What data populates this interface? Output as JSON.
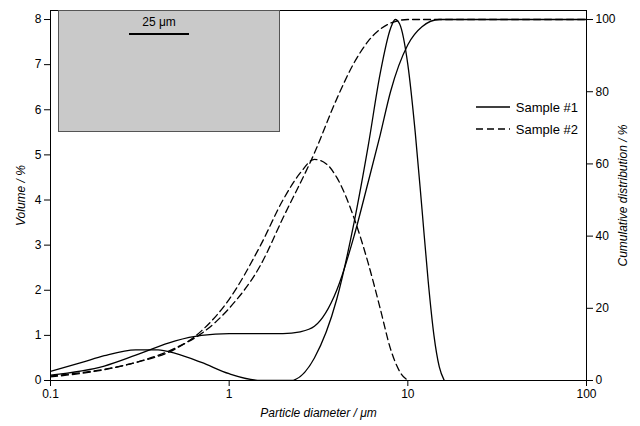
{
  "chart_data": {
    "type": "line",
    "x_label": "Particle diameter / μm",
    "y_label": "Volume / %",
    "y2_label": "Cumulative distribution / %",
    "log": "x",
    "legend": "upper right",
    "annotations": [
      "25 μm"
    ],
    "xlim": [
      0.1,
      100
    ],
    "xticks": [
      0.1,
      1,
      10,
      100
    ],
    "ylim": [
      0,
      8.2
    ],
    "yticks": [
      0,
      1,
      2,
      3,
      4,
      5,
      6,
      7,
      8
    ],
    "y2lim": [
      0,
      102.5
    ],
    "y2ticks": [
      0,
      20,
      40,
      60,
      80,
      100
    ],
    "series": [
      {
        "name": "Sample #1",
        "color": "#000000",
        "line_style": "solid",
        "x": [
          0.1,
          0.15,
          0.2,
          0.3,
          0.4,
          0.5,
          0.7,
          1,
          1.5,
          2,
          2.2,
          3,
          4,
          5,
          6,
          7,
          8,
          8.5,
          9,
          10,
          11,
          12,
          13,
          14,
          15,
          16
        ],
        "values": [
          0.2,
          0.4,
          0.55,
          0.68,
          0.68,
          0.6,
          0.4,
          0.15,
          0,
          0,
          0,
          0.5,
          1.8,
          3.5,
          5.2,
          6.8,
          7.8,
          8.0,
          7.9,
          7.0,
          5.5,
          3.8,
          2.2,
          1.0,
          0.3,
          0
        ]
      },
      {
        "name": "Sample #1",
        "color": "#000000",
        "line_style": "solid",
        "axis": "y2",
        "x": [
          0.1,
          0.2,
          0.3,
          0.5,
          0.7,
          1,
          2,
          2.5,
          3,
          4,
          5,
          6,
          7,
          8,
          10,
          12,
          15,
          100
        ],
        "values": [
          1.5,
          4,
          7,
          11,
          12.5,
          13,
          13,
          13.5,
          15,
          25,
          40,
          55,
          68,
          80,
          93,
          98,
          100,
          100
        ]
      },
      {
        "name": "Sample #2",
        "color": "#000000",
        "line_style": "dashed",
        "x": [
          0.1,
          0.2,
          0.3,
          0.5,
          0.7,
          1,
          1.5,
          2,
          2.5,
          3,
          3.5,
          4,
          5,
          6,
          7,
          8,
          9,
          10
        ],
        "values": [
          0.1,
          0.25,
          0.4,
          0.7,
          1.1,
          1.8,
          3.0,
          4.0,
          4.6,
          4.9,
          4.8,
          4.5,
          3.6,
          2.6,
          1.6,
          0.7,
          0.2,
          0
        ]
      },
      {
        "name": "Sample #2",
        "color": "#000000",
        "line_style": "dashed",
        "axis": "y2",
        "x": [
          0.1,
          0.2,
          0.3,
          0.5,
          0.7,
          1,
          1.5,
          2,
          3,
          4,
          5,
          6,
          8,
          10,
          100
        ],
        "values": [
          1,
          3,
          5,
          9,
          13,
          20,
          32,
          45,
          63,
          78,
          88,
          94,
          99,
          100,
          100
        ]
      }
    ]
  }
}
